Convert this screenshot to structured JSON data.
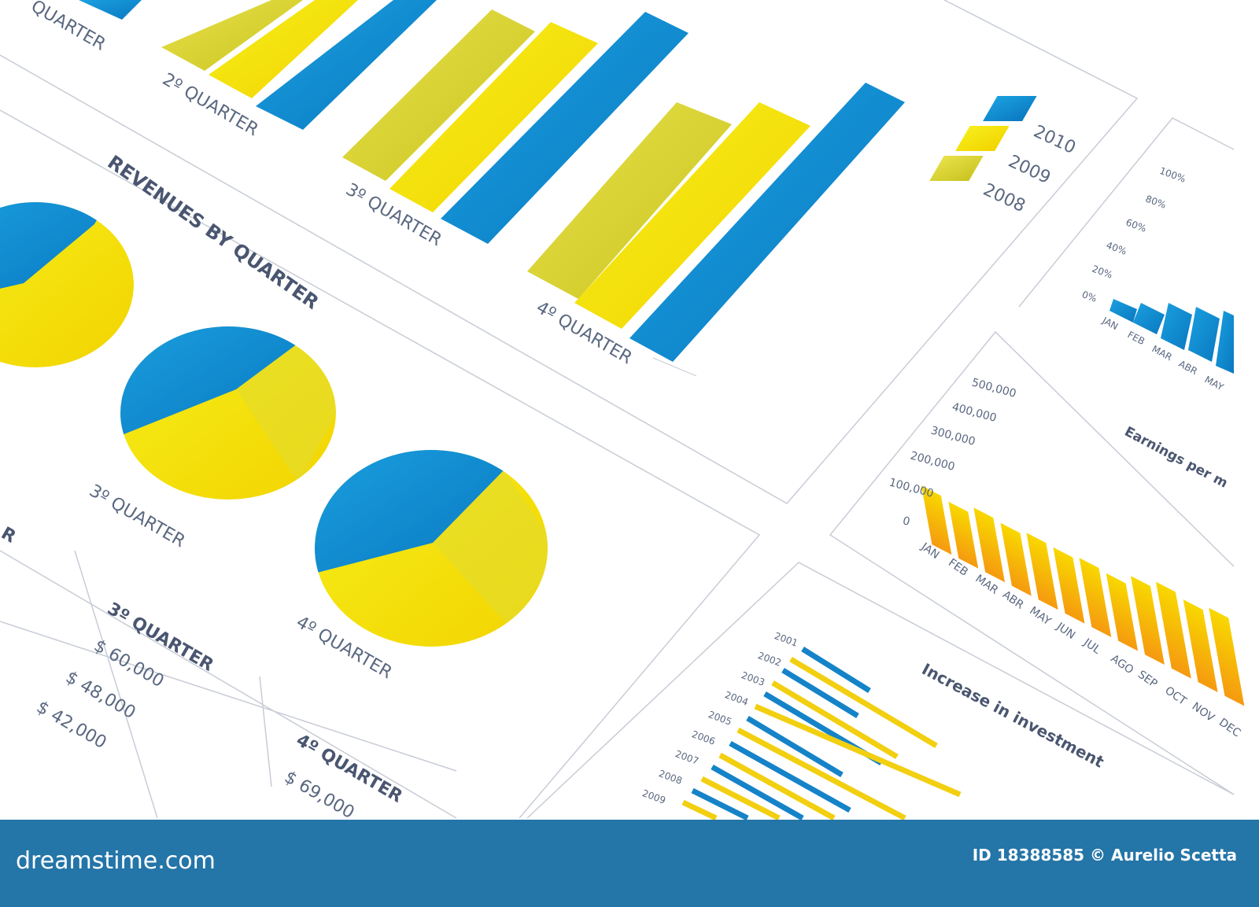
{
  "bar_panel": {
    "partial_label": "QUARTER",
    "quarters": [
      "2º QUARTER",
      "3º QUARTER",
      "4º QUARTER"
    ],
    "legend": [
      "2010",
      "2009",
      "2008"
    ]
  },
  "pie_panel": {
    "title": "REVENUES BY QUARTER",
    "labels": [
      "3º QUARTER",
      "4º QUARTER"
    ]
  },
  "table": {
    "partial_header": "R",
    "q3": {
      "header": "3º QUARTER",
      "rows": [
        "$ 60,000",
        "$ 48,000",
        "$ 42,000"
      ]
    },
    "q4": {
      "header": "4º QUARTER",
      "rows": [
        "$ 69,000"
      ]
    }
  },
  "percent_panel": {
    "ticks": [
      "100%",
      "80%",
      "60%",
      "40%",
      "20%",
      "0%"
    ],
    "months": [
      "JAN",
      "FEB",
      "MAR",
      "ABR",
      "MAY"
    ]
  },
  "earnings_panel": {
    "title": "Earnings per m",
    "ticks": [
      "500,000",
      "400,000",
      "300,000",
      "200,000",
      "100,000",
      "0"
    ],
    "months": [
      "JAN",
      "FEB",
      "MAR",
      "ABR",
      "MAY",
      "JUN",
      "JUL",
      "AGO",
      "SEP",
      "OCT",
      "NOV",
      "DEC"
    ]
  },
  "investment_panel": {
    "title": "Increase in investment",
    "years": [
      "2001",
      "2002",
      "2003",
      "2004",
      "2005",
      "2006",
      "2007",
      "2008",
      "2009"
    ]
  },
  "banner": {
    "brand": "dreamstime.com",
    "credit": "ID 18388585 © Aurelio Scetta"
  }
}
